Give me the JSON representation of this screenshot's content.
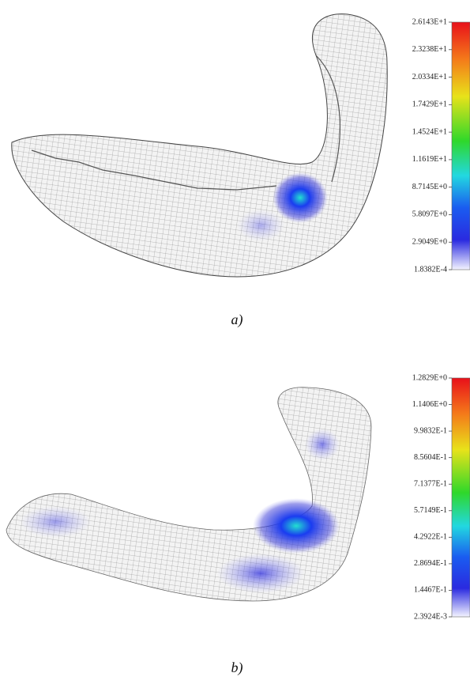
{
  "panels": [
    {
      "caption": "a)",
      "legend_labels": [
        "2.6143E+1",
        "2.3238E+1",
        "2.0334E+1",
        "1.7429E+1",
        "1.4524E+1",
        "1.1619E+1",
        "8.7145E+0",
        "5.8097E+0",
        "2.9049E+0",
        "1.8382E-4"
      ]
    },
    {
      "caption": "b)",
      "legend_labels": [
        "1.2829E+0",
        "1.1406E+0",
        "9.9832E-1",
        "8.5604E-1",
        "7.1377E-1",
        "5.7149E-1",
        "4.2922E-1",
        "2.8694E-1",
        "1.4467E-1",
        "2.3924E-3"
      ]
    }
  ]
}
